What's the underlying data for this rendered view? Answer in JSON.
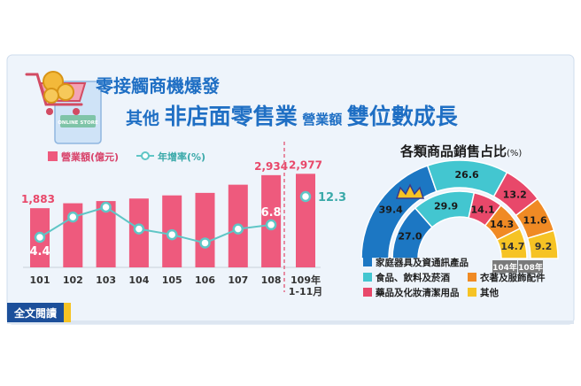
{
  "header": {
    "title_line1": "零接觸商機爆發",
    "title_line2_a": "其他",
    "title_line2_b": "非店面零售業",
    "title_line2_c": "營業額",
    "title_line2_d": "雙位數成長",
    "store_sign": "ONLINE STORE"
  },
  "footer": {
    "read_more": "全文閱讀"
  },
  "colors": {
    "bar": "#ee5a7d",
    "line": "#5fc6c6",
    "title_blue": "#1f6fc4",
    "home_appliance": "#1c77c3",
    "food": "#43c6d0",
    "apparel": "#f08a24",
    "pharma": "#e8486a",
    "other": "#f6c324"
  },
  "chart_data": [
    {
      "type": "bar",
      "legend": {
        "bar_label": "營業額(億元)",
        "line_label": "年增率(%)"
      },
      "categories": [
        "101",
        "102",
        "103",
        "104",
        "105",
        "106",
        "107",
        "108",
        "109年\n1-11月"
      ],
      "series": [
        {
          "name": "營業額(億元)",
          "values": [
            1883,
            2040,
            2110,
            2190,
            2290,
            2370,
            2630,
            2934,
            2977
          ]
        },
        {
          "name": "年增率(%)",
          "values": [
            4.4,
            8.3,
            10.2,
            6.0,
            4.9,
            3.3,
            6.0,
            6.8,
            12.3
          ]
        }
      ],
      "data_labels": [
        {
          "index": 0,
          "series": 0,
          "text": "1,883"
        },
        {
          "index": 7,
          "series": 0,
          "text": "2,934"
        },
        {
          "index": 8,
          "series": 0,
          "text": "2,977"
        },
        {
          "index": 0,
          "series": 1,
          "text": "4.4"
        },
        {
          "index": 7,
          "series": 1,
          "text": "6.8"
        },
        {
          "index": 8,
          "series": 1,
          "text": "12.3"
        }
      ]
    },
    {
      "type": "pie",
      "title": "各類商品銷售占比",
      "title_unit": "(%)",
      "rings": [
        "104年",
        "108年"
      ],
      "slices": [
        {
          "name": "家庭器具及資通訊產品",
          "values": [
            27.0,
            39.4
          ]
        },
        {
          "name": "食品、飲料及菸酒",
          "values": [
            29.9,
            26.6
          ]
        },
        {
          "name": "藥品及化妝清潔用品",
          "values": [
            14.1,
            13.2
          ]
        },
        {
          "name": "衣著及服飾配件",
          "values": [
            14.3,
            11.6
          ]
        },
        {
          "name": "其他",
          "values": [
            14.7,
            9.2
          ]
        }
      ]
    }
  ]
}
